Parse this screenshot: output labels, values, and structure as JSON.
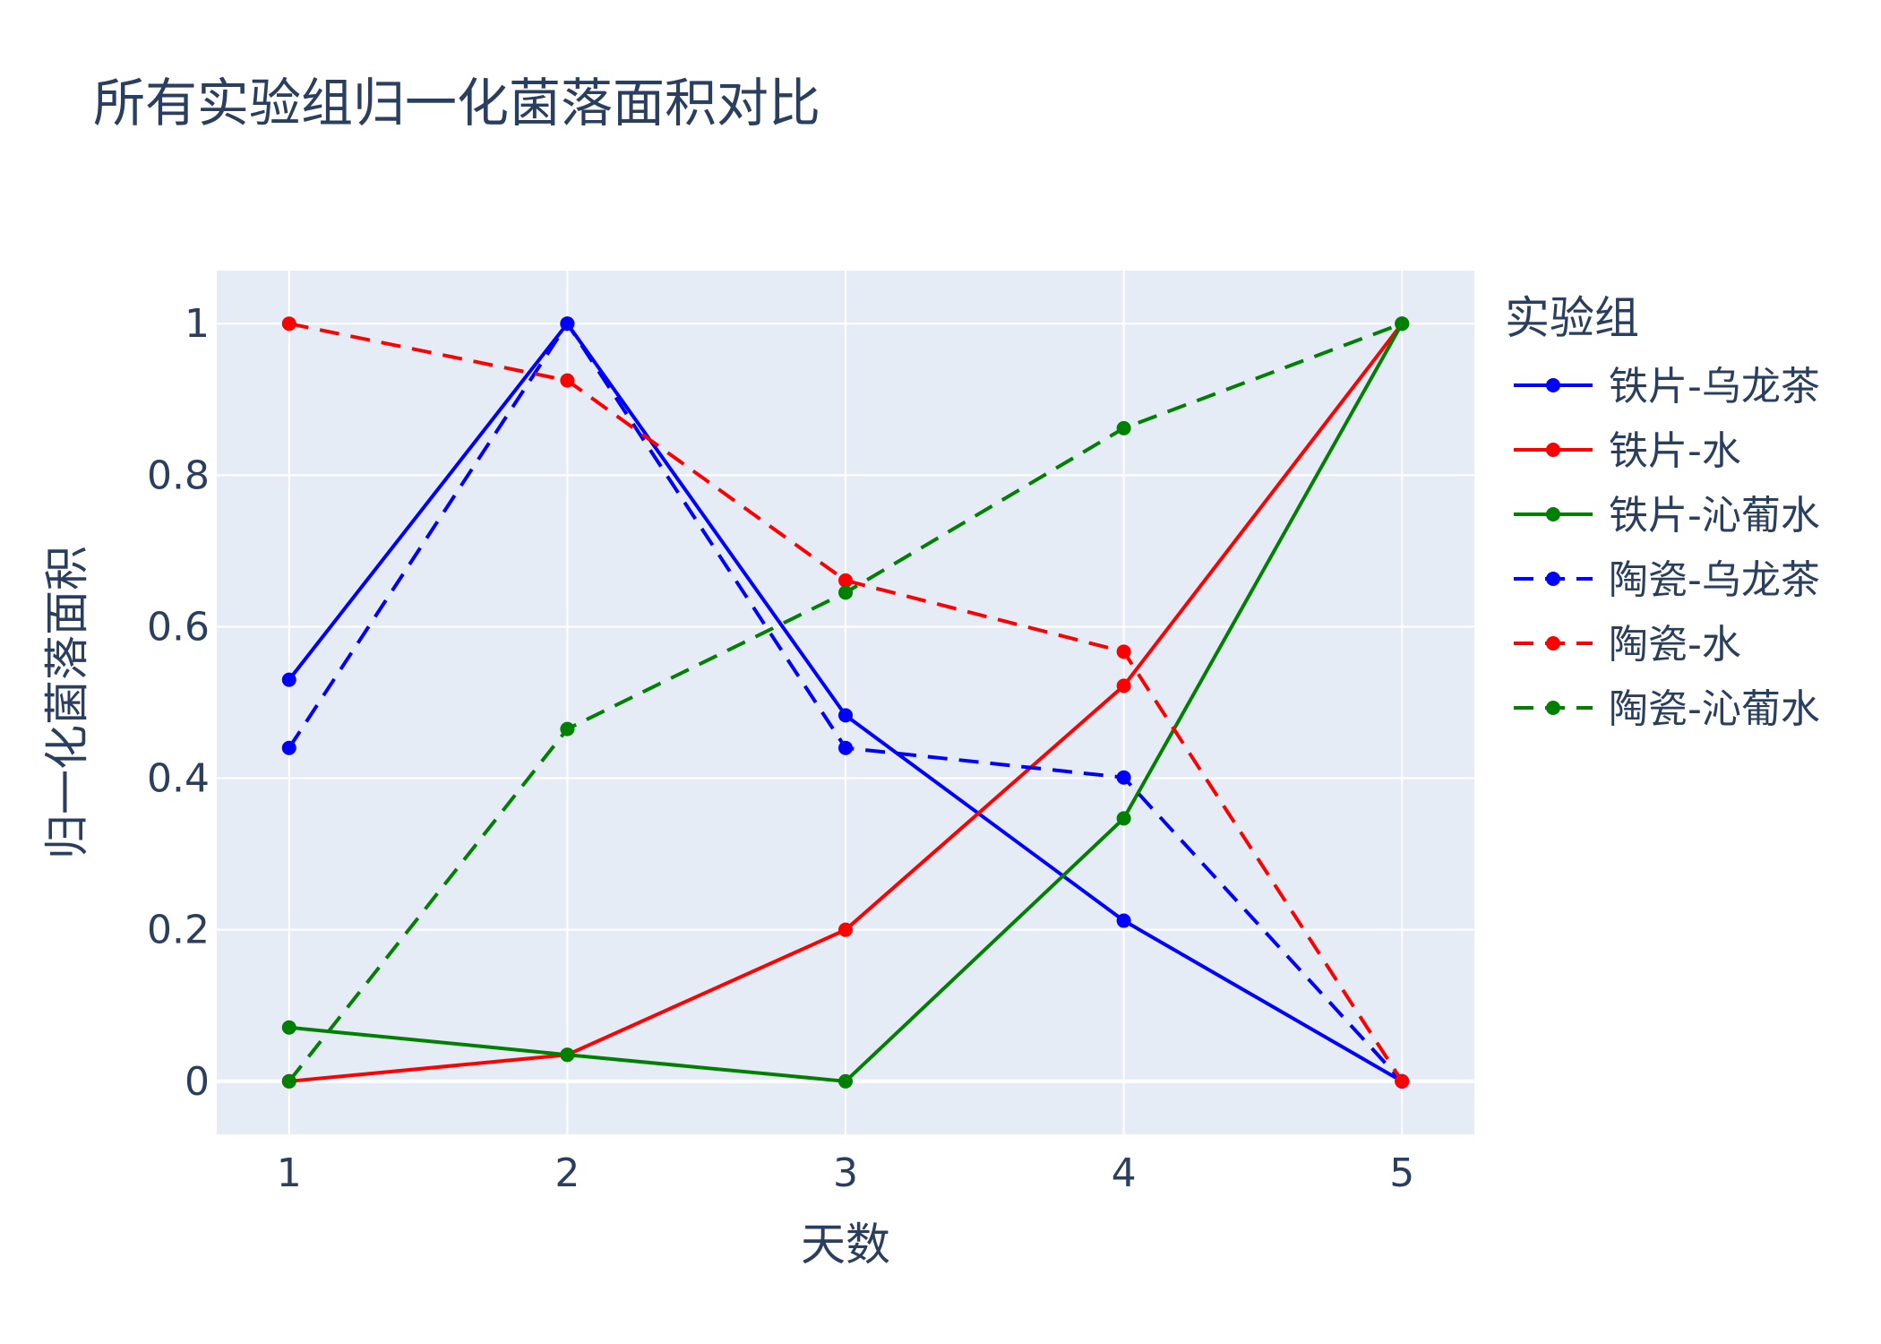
{
  "chart_data": {
    "type": "line",
    "title": "所有实验组归一化菌落面积对比",
    "xlabel": "天数",
    "ylabel": "归一化菌落面积",
    "x": [
      1,
      2,
      3,
      4,
      5
    ],
    "xticks": [
      "1",
      "2",
      "3",
      "4",
      "5"
    ],
    "yticks": [
      "0",
      "0.2",
      "0.4",
      "0.6",
      "0.8",
      "1"
    ],
    "xlim": [
      0.74,
      5.26
    ],
    "ylim": [
      -0.07,
      1.07
    ],
    "grid": true,
    "plot_background": "#e5ecf6",
    "legend": {
      "title": "实验组",
      "position": "right"
    },
    "series": [
      {
        "name": "铁片-乌龙茶",
        "color": "#0000ff",
        "dash": "solid",
        "values": [
          0.53,
          1.0,
          0.483,
          0.212,
          0.0
        ]
      },
      {
        "name": "铁片-水",
        "color": "#ff0000",
        "dash": "solid",
        "values": [
          0.0,
          0.035,
          0.2,
          0.522,
          1.0
        ]
      },
      {
        "name": "铁片-沁葡水",
        "color": "#008000",
        "dash": "solid",
        "values": [
          0.071,
          0.035,
          0.0,
          0.347,
          1.0
        ]
      },
      {
        "name": "陶瓷-乌龙茶",
        "color": "#0000ff",
        "dash": "dash",
        "values": [
          0.44,
          1.0,
          0.44,
          0.401,
          0.0
        ]
      },
      {
        "name": "陶瓷-水",
        "color": "#ff0000",
        "dash": "dash",
        "values": [
          1.0,
          0.925,
          0.661,
          0.567,
          0.0
        ]
      },
      {
        "name": "陶瓷-沁葡水",
        "color": "#008000",
        "dash": "dash",
        "values": [
          0.0,
          0.465,
          0.645,
          0.862,
          1.0
        ]
      }
    ]
  }
}
